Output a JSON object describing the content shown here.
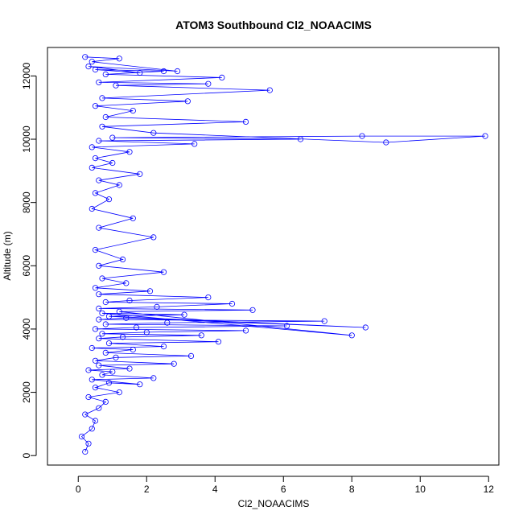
{
  "chart_data": {
    "type": "scatter",
    "title": "ATOM3 Southbound Cl2_NOAACIMS",
    "xlabel": "Cl2_NOAACIMS",
    "ylabel": "Altitude (m)",
    "xlim": [
      -0.9,
      12.3
    ],
    "ylim": [
      -300,
      12900
    ],
    "x_ticks": [
      0,
      2,
      4,
      6,
      8,
      10,
      12
    ],
    "y_ticks": [
      0,
      2000,
      4000,
      6000,
      8000,
      10000,
      12000
    ],
    "marker": "open-circle",
    "connected": true,
    "grid": false,
    "legend": "none",
    "color": "#0000ff",
    "series": [
      {
        "x": [
          0.2,
          0.3,
          0.1,
          0.4,
          0.5,
          0.2,
          0.6,
          0.8,
          0.3,
          1.2,
          0.5,
          0.9,
          1.8,
          0.4,
          2.2,
          0.7,
          1.0,
          0.3,
          1.5,
          0.6,
          2.8,
          0.5,
          1.1,
          3.3,
          0.8,
          1.6,
          0.4,
          2.5,
          0.9,
          4.1,
          0.6,
          1.3,
          3.6,
          0.7,
          2.0,
          4.9,
          0.5,
          1.7,
          6.1,
          0.8,
          2.6,
          7.2,
          0.6,
          1.4,
          8.4,
          0.9,
          3.1,
          0.7,
          8.0,
          1.2,
          5.1,
          0.6,
          2.3,
          4.5,
          0.8,
          1.5,
          3.8,
          0.6,
          2.1,
          0.5,
          1.4,
          0.7,
          2.5,
          0.6,
          1.3,
          0.5,
          2.2,
          0.6,
          1.6,
          0.4,
          0.9,
          0.5,
          1.2,
          0.6,
          1.8,
          0.4,
          1.0,
          0.5,
          1.5,
          0.4,
          3.4,
          0.6,
          6.5,
          1.0,
          8.3,
          11.9,
          9.0,
          2.2,
          0.7,
          4.9,
          0.8,
          1.6,
          0.5,
          3.2,
          0.7,
          5.6,
          1.1,
          3.8,
          0.6,
          4.2,
          0.8,
          2.5,
          0.5,
          1.8,
          0.3,
          2.9,
          0.4,
          1.2,
          0.2
        ],
        "y": [
          120,
          380,
          600,
          850,
          1100,
          1300,
          1500,
          1700,
          1850,
          2000,
          2150,
          2300,
          2250,
          2400,
          2450,
          2550,
          2650,
          2700,
          2750,
          2850,
          2900,
          3000,
          3100,
          3150,
          3250,
          3350,
          3400,
          3450,
          3550,
          3600,
          3700,
          3750,
          3800,
          3850,
          3900,
          3950,
          4000,
          4050,
          4100,
          4150,
          4200,
          4250,
          4300,
          4350,
          4050,
          4400,
          4450,
          4500,
          3800,
          4550,
          4600,
          4650,
          4700,
          4800,
          4850,
          4900,
          5000,
          5100,
          5200,
          5300,
          5450,
          5600,
          5800,
          6000,
          6200,
          6500,
          6900,
          7200,
          7500,
          7800,
          8100,
          8300,
          8550,
          8700,
          8900,
          9100,
          9250,
          9400,
          9600,
          9750,
          9850,
          9950,
          10000,
          10050,
          10100,
          10100,
          9900,
          10200,
          10400,
          10550,
          10700,
          10900,
          11050,
          11200,
          11300,
          11550,
          11700,
          11750,
          11800,
          11950,
          12050,
          12150,
          12200,
          12100,
          12300,
          12150,
          12450,
          12550,
          12600
        ]
      }
    ]
  }
}
